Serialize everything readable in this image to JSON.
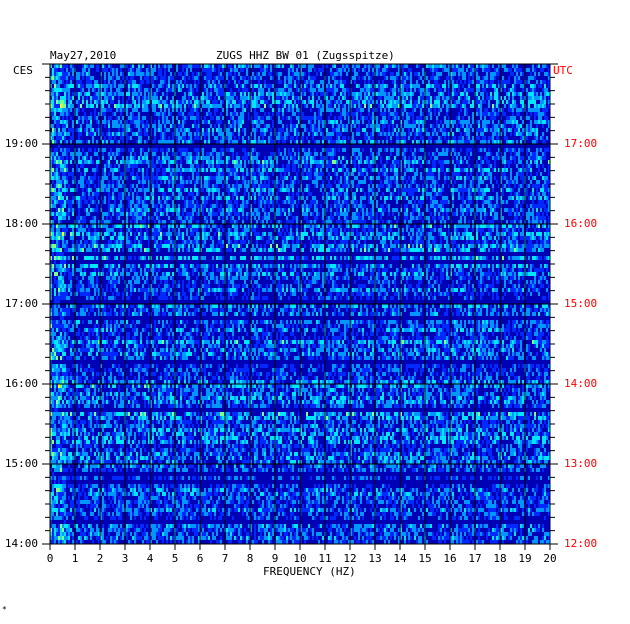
{
  "chart_data": {
    "type": "heatmap",
    "date": "May27,2010",
    "title": "ZUGS HHZ BW 01 (Zugsspitze)",
    "left_axis_label": "CES",
    "right_axis_label": "UTC",
    "xlabel": "FREQUENCY (HZ)",
    "xlim": [
      0,
      20
    ],
    "x_ticks": [
      "0",
      "1",
      "2",
      "3",
      "4",
      "5",
      "6",
      "7",
      "8",
      "9",
      "10",
      "11",
      "12",
      "13",
      "14",
      "15",
      "16",
      "17",
      "18",
      "19",
      "20"
    ],
    "y_ticks_left": [
      "19:00",
      "18:00",
      "17:00",
      "16:00",
      "15:00",
      "14:00"
    ],
    "y_ticks_right": [
      "17:00",
      "16:00",
      "15:00",
      "14:00",
      "13:00",
      "12:00"
    ],
    "ylim_local": [
      "14:00",
      "20:00"
    ],
    "colormap": [
      "#0000b4",
      "#0028ff",
      "#0096ff",
      "#00e6ff",
      "#80ff80",
      "#ffff00",
      "#ff8000",
      "#e00000"
    ],
    "grid": true,
    "footnote": "*"
  }
}
